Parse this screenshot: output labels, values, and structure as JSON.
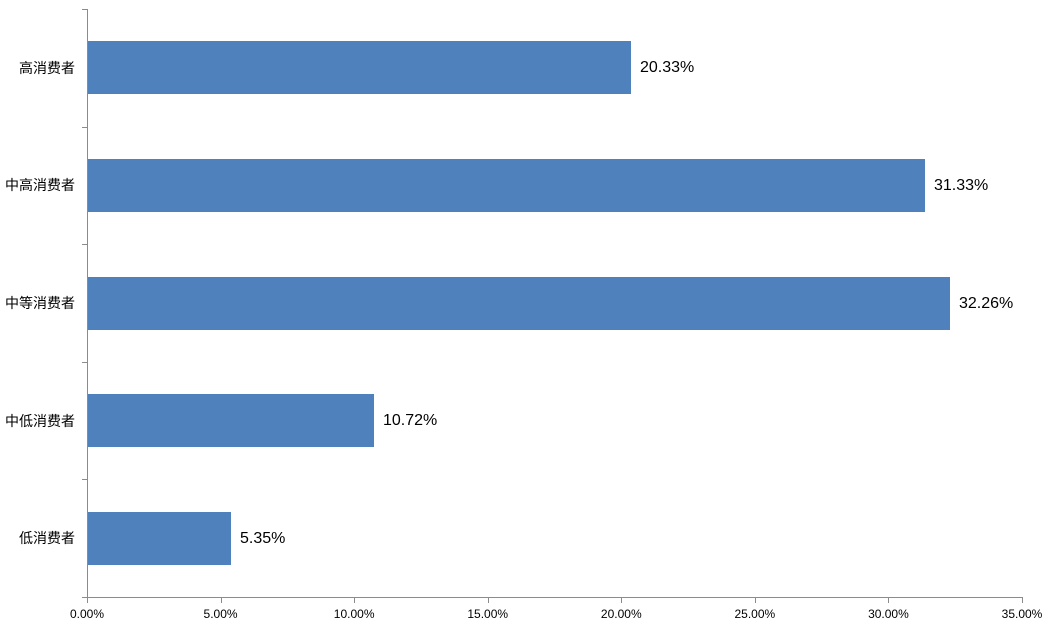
{
  "chart_data": {
    "type": "bar",
    "orientation": "horizontal",
    "title": "",
    "categories": [
      "高消费者",
      "中高消费者",
      "中等消费者",
      "中低消费者",
      "低消费者"
    ],
    "values": [
      20.33,
      31.33,
      32.26,
      10.72,
      5.35
    ],
    "data_labels": [
      "20.33%",
      "31.33%",
      "32.26%",
      "10.72%",
      "5.35%"
    ],
    "x_axis": {
      "min": 0,
      "max": 35,
      "tick_step": 5,
      "tick_labels": [
        "0.00%",
        "5.00%",
        "10.00%",
        "15.00%",
        "20.00%",
        "25.00%",
        "30.00%",
        "35.00%"
      ]
    },
    "y_axis": {
      "boundary_ticks": 6
    },
    "legend": false,
    "grid": false,
    "colors": {
      "bar": "#4F81BD",
      "axis": "#8B8B8B",
      "text": "#000000",
      "background": "#FFFFFF"
    }
  }
}
